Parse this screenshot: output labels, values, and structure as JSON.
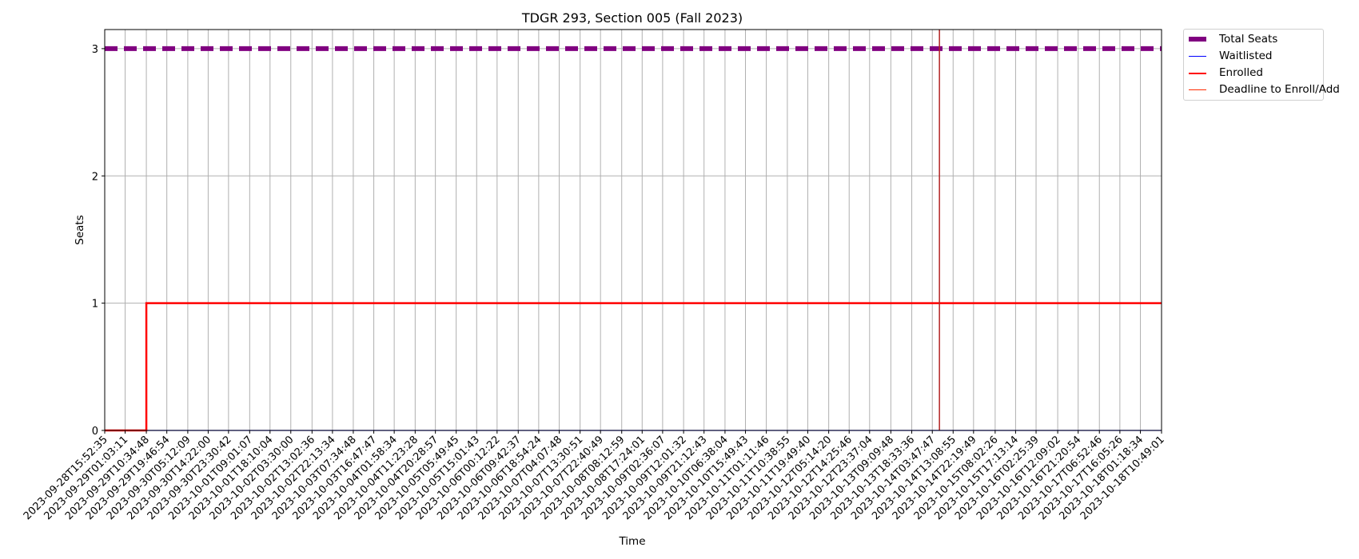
{
  "chart_data": {
    "type": "line",
    "title": "TDGR 293, Section 005 (Fall 2023)",
    "xlabel": "Time",
    "ylabel": "Seats",
    "ylim": [
      0,
      3.15
    ],
    "yticks": [
      "0",
      "1",
      "2",
      "3"
    ],
    "grid": true,
    "legend_position": "outside top-right",
    "x_tick_labels": [
      "2023-09-28T15:52:35",
      "2023-09-29T01:03:11",
      "2023-09-29T10:34:48",
      "2023-09-29T19:46:54",
      "2023-09-30T05:12:09",
      "2023-09-30T14:22:00",
      "2023-09-30T23:30:42",
      "2023-10-01T09:01:07",
      "2023-10-01T18:10:04",
      "2023-10-02T03:30:00",
      "2023-10-02T13:02:36",
      "2023-10-02T22:13:34",
      "2023-10-03T07:34:48",
      "2023-10-03T16:47:47",
      "2023-10-04T01:58:34",
      "2023-10-04T11:23:28",
      "2023-10-04T20:28:57",
      "2023-10-05T05:49:45",
      "2023-10-05T15:01:43",
      "2023-10-06T00:12:22",
      "2023-10-06T09:42:37",
      "2023-10-06T18:54:24",
      "2023-10-07T04:07:48",
      "2023-10-07T13:30:51",
      "2023-10-07T22:40:49",
      "2023-10-08T08:12:59",
      "2023-10-08T17:24:01",
      "2023-10-09T02:36:07",
      "2023-10-09T12:01:32",
      "2023-10-09T21:12:43",
      "2023-10-10T06:38:04",
      "2023-10-10T15:49:43",
      "2023-10-11T01:11:46",
      "2023-10-11T10:38:55",
      "2023-10-11T19:49:40",
      "2023-10-12T05:14:20",
      "2023-10-12T14:25:46",
      "2023-10-12T23:37:04",
      "2023-10-13T09:09:48",
      "2023-10-13T18:33:36",
      "2023-10-14T03:47:47",
      "2023-10-14T13:08:55",
      "2023-10-14T22:19:49",
      "2023-10-15T08:02:26",
      "2023-10-15T17:13:14",
      "2023-10-16T02:25:39",
      "2023-10-16T12:09:02",
      "2023-10-16T21:20:54",
      "2023-10-17T06:52:46",
      "2023-10-17T16:05:26",
      "2023-10-18T01:18:34",
      "2023-10-18T10:49:01"
    ],
    "series": [
      {
        "name": "Total Seats",
        "color": "#800080",
        "style": "dashed-thick",
        "points": [
          [
            "2023-09-28T15:52:35",
            3
          ],
          [
            "2023-10-18T10:49:01",
            3
          ]
        ]
      },
      {
        "name": "Waitlisted",
        "color": "#0000ff",
        "style": "solid-thin",
        "points": [
          [
            "2023-09-28T15:52:35",
            0
          ],
          [
            "2023-10-18T10:49:01",
            0
          ]
        ]
      },
      {
        "name": "Enrolled",
        "color": "#ff0000",
        "style": "solid-thick",
        "points": [
          [
            "2023-09-28T15:52:35",
            0
          ],
          [
            "2023-09-29T10:34:48",
            0
          ],
          [
            "2023-09-29T10:34:48",
            1
          ],
          [
            "2023-10-18T10:49:01",
            1
          ]
        ]
      }
    ],
    "vertical_lines": [
      {
        "name": "Deadline to Enroll/Add",
        "color": "#b22222",
        "x": "2023-10-14T07:00:00"
      }
    ]
  },
  "legend": {
    "items": [
      {
        "label": "Total Seats",
        "color": "#800080"
      },
      {
        "label": "Waitlisted",
        "color": "#0000ff"
      },
      {
        "label": "Enrolled",
        "color": "#ff0000"
      },
      {
        "label": "Deadline to Enroll/Add",
        "color": "#ff2a00"
      }
    ]
  }
}
